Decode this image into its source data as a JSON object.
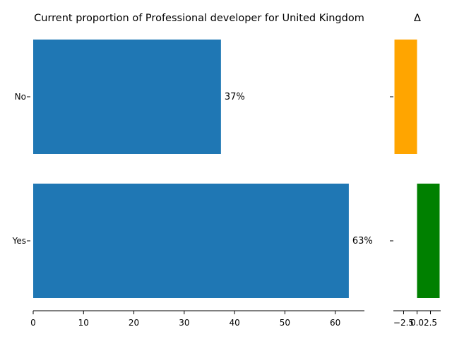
{
  "chart_data": [
    {
      "type": "bar",
      "orientation": "horizontal",
      "title": "Current proportion of Professional developer for United Kingdom",
      "categories": [
        "No",
        "Yes"
      ],
      "values": [
        37.3,
        62.7
      ],
      "value_labels": [
        "37%",
        "63%"
      ],
      "xlim": [
        0,
        65.8
      ],
      "xticks": [
        "0",
        "10",
        "20",
        "30",
        "40",
        "50",
        "60"
      ],
      "grid": false,
      "color": "#1f77b4"
    },
    {
      "type": "bar",
      "orientation": "horizontal",
      "title": "Δ",
      "categories": [
        "No",
        "Yes"
      ],
      "values": [
        -4.2,
        4.2
      ],
      "colors": [
        "orange",
        "green"
      ],
      "xlim": [
        -4.4,
        4.4
      ],
      "xticks": [
        "−2.5",
        "0.0",
        "2.5"
      ],
      "grid": false
    }
  ]
}
